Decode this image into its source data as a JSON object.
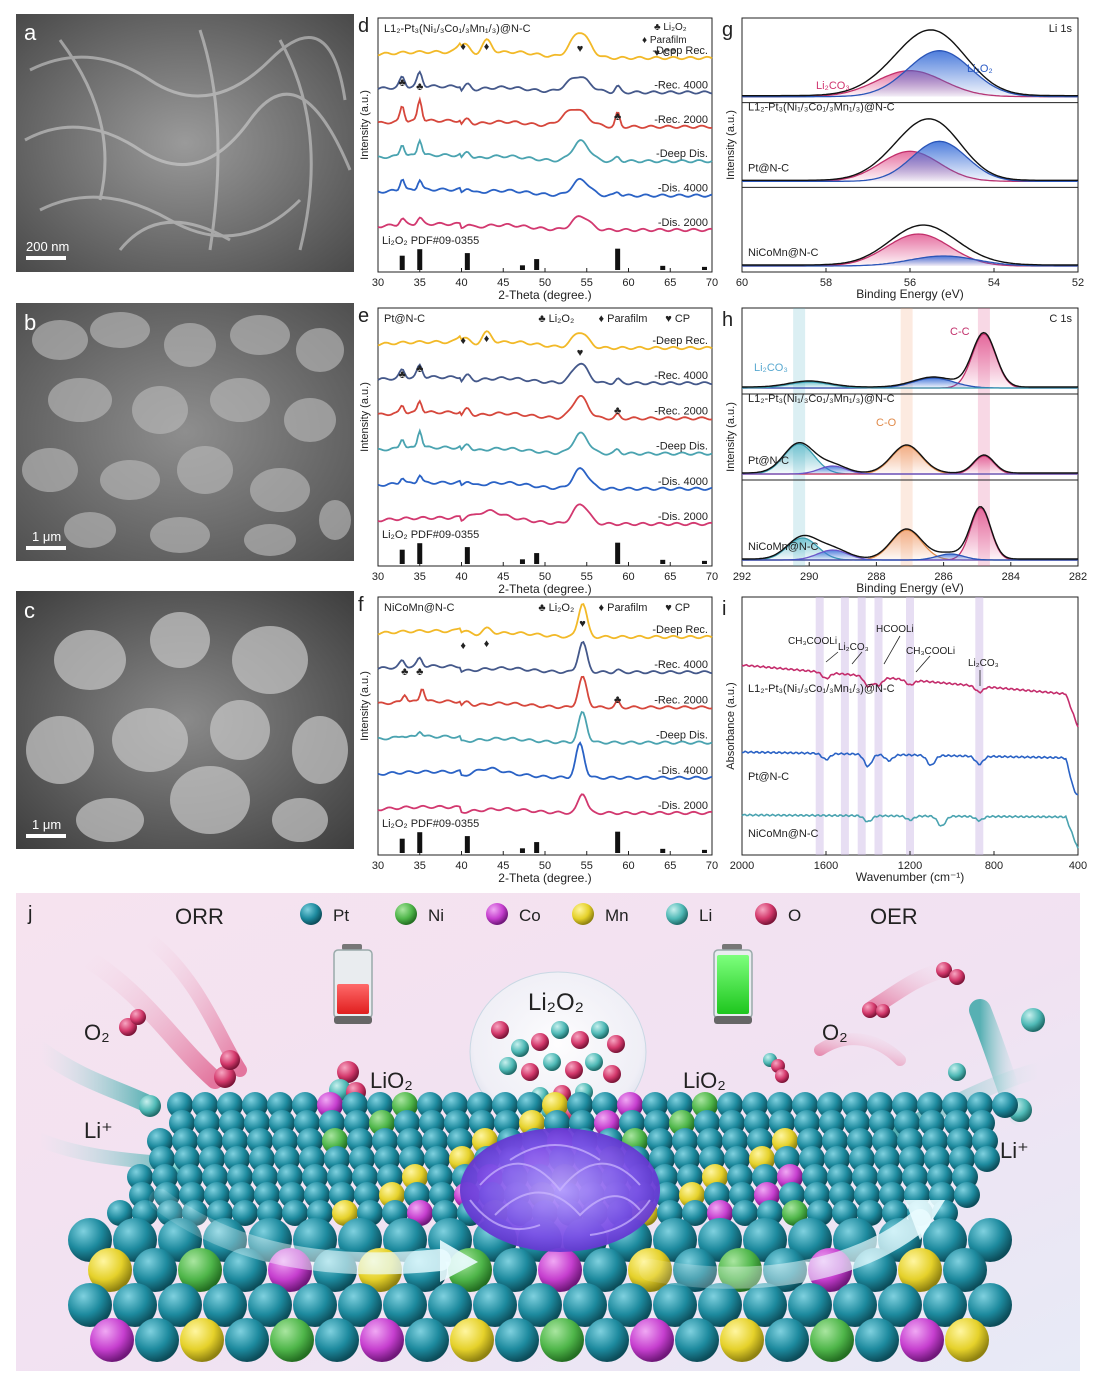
{
  "panels": {
    "a": {
      "letter": "a",
      "scale": "200 nm"
    },
    "b": {
      "letter": "b",
      "scale": "1 μm"
    },
    "c": {
      "letter": "c",
      "scale": "1 μm"
    },
    "d": {
      "letter": "d",
      "sample": "L1₂-Pt₃(Ni₁/₃Co₁/₃Mn₁/₃)@N-C"
    },
    "e": {
      "letter": "e",
      "sample": "Pt@N-C"
    },
    "f": {
      "letter": "f",
      "sample": "NiCoMn@N-C"
    },
    "g": {
      "letter": "g",
      "tag": "Li 1s"
    },
    "h": {
      "letter": "h",
      "tag": "C 1s"
    },
    "i": {
      "letter": "i"
    },
    "j": {
      "letter": "j"
    }
  },
  "xrd": {
    "ylabel": "Intensity (a.u.)",
    "xlabel": "2-Theta (degree.)",
    "curve_labels": [
      "-Deep Rec.",
      "-Rec. 4000",
      "-Rec. 2000",
      "-Deep Dis.",
      "-Dis. 4000",
      "-Dis. 2000"
    ],
    "curve_colors": [
      "#f2b928",
      "#44588a",
      "#d6473c",
      "#4aa3b0",
      "#2a62c5",
      "#d2386f"
    ],
    "legend": {
      "club": "♣ Li₂O₂",
      "diamond": "♦ Parafilm",
      "heart": "♥ CP"
    },
    "ref_label": "Li₂O₂  PDF#09-0355",
    "ref_peaks_deg": [
      32.9,
      35.0,
      40.7,
      47.3,
      49.0,
      58.7,
      64.1,
      69.1
    ],
    "ref_heights": [
      0.55,
      0.8,
      0.65,
      0.18,
      0.42,
      0.82,
      0.16,
      0.12
    ],
    "xticks": [
      "30",
      "35",
      "40",
      "45",
      "50",
      "55",
      "60",
      "65",
      "70"
    ],
    "xlim": [
      30,
      70
    ]
  },
  "xps": {
    "ylabel": "Intensity (a.u.)",
    "xlabel": "Binding Energy (eV)",
    "samples": [
      "L1₂-Pt₃(Ni₁/₃Co₁/₃Mn₁/₃)@N-C",
      "Pt@N-C",
      "NiCoMn@N-C"
    ],
    "li1s_xticks": [
      "60",
      "58",
      "56",
      "54",
      "52"
    ],
    "li1s_xlim": [
      60,
      52
    ],
    "li1s_labels": {
      "li2co3": "Li₂CO₃",
      "li2o2": "Li₂O₂"
    },
    "c1s_xticks": [
      "292",
      "290",
      "288",
      "286",
      "284",
      "282"
    ],
    "c1s_xlim": [
      292,
      282
    ],
    "c1s_labels": {
      "cc": "C-C",
      "co": "C-O",
      "li2co3": "Li₂CO₃"
    }
  },
  "ftir": {
    "ylabel": "Absorbance (a.u.)",
    "xlabel": "Wavenumber (cm⁻¹)",
    "xticks": [
      "2000",
      "1600",
      "1200",
      "800",
      "400"
    ],
    "xlim": [
      2000,
      400
    ],
    "samples": [
      "L1₂-Pt₃(Ni₁/₃Co₁/₃Mn₁/₃)@N-C",
      "Pt@N-C",
      "NiCoMn@N-C"
    ],
    "annotations": [
      "CH₃COOLi",
      "Li₂CO₃",
      "HCOOLi",
      "CH₃COOLi",
      "Li₂CO₃"
    ]
  },
  "schematic": {
    "legend": [
      {
        "name": "Pt",
        "color": "#1d8a9e"
      },
      {
        "name": "Ni",
        "color": "#4fb64a"
      },
      {
        "name": "Co",
        "color": "#c63fcf"
      },
      {
        "name": "Mn",
        "color": "#e5d12a"
      },
      {
        "name": "Li",
        "color": "#4fb9b6"
      },
      {
        "name": "O",
        "color": "#d3386b"
      }
    ],
    "orr": "ORR",
    "oer": "OER",
    "o2": "O₂",
    "li_plus": "Li⁺",
    "lio2": "LiO₂",
    "li2o2": "Li₂O₂"
  }
}
